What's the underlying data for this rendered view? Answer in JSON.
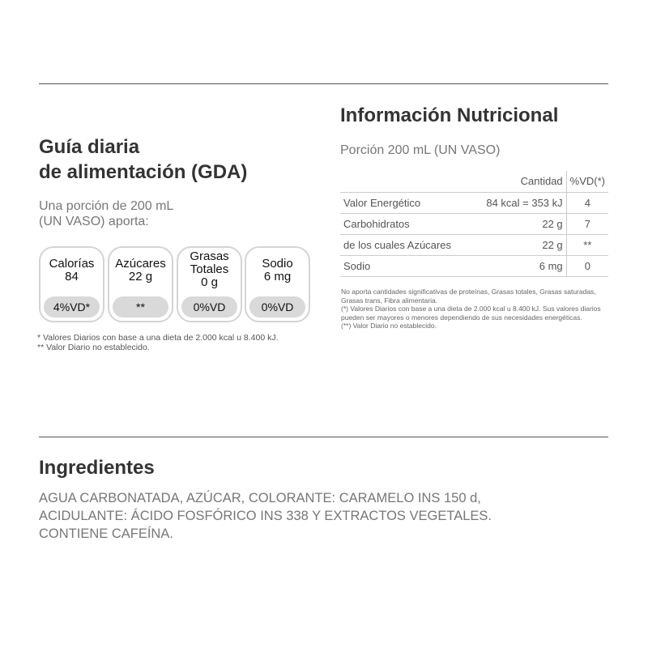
{
  "gda": {
    "title_line1": "Guía diaria",
    "title_line2": "de alimentación (GDA)",
    "subtitle_line1": "Una porción de 200 mL",
    "subtitle_line2": "(UN VASO) aporta:",
    "boxes": [
      {
        "lines": [
          "Calorías",
          "84"
        ],
        "pill": "4%VD*"
      },
      {
        "lines": [
          "Azúcares",
          "22 g"
        ],
        "pill": "**"
      },
      {
        "lines": [
          "Grasas",
          "Totales",
          "0 g"
        ],
        "pill": "0%VD"
      },
      {
        "lines": [
          "Sodio",
          "6 mg"
        ],
        "pill": "0%VD"
      }
    ],
    "footnote1": "* Valores Diarios con base a una dieta de 2.000 kcal u 8.400 kJ.",
    "footnote2": "** Valor Diario no establecido."
  },
  "nutrition": {
    "title": "Información Nutricional",
    "portion": "Porción 200 mL (UN VASO)",
    "headers": [
      "",
      "Cantidad",
      "%VD(*)"
    ],
    "rows": [
      [
        "Valor Energético",
        "84 kcal = 353 kJ",
        "4"
      ],
      [
        "Carbohidratos",
        "22 g",
        "7"
      ],
      [
        "de los cuales Azúcares",
        "22 g",
        "**"
      ],
      [
        "Sodio",
        "6 mg",
        "0"
      ]
    ],
    "notes": [
      "No aporta cantidades significativas de proteínas, Grasas totales, Grasas saturadas, Grasas trans, Fibra alimentaria.",
      "(*) Valores Diarios con base a una dieta de 2.000 kcal u 8.400 kJ. Sus valores diarios pueden ser mayores o menores dependiendo de sus necesidades energéticas.",
      "(**) Valor Diario no establecido."
    ]
  },
  "ingredients": {
    "title": "Ingredientes",
    "lines": [
      "AGUA CARBONATADA, AZÚCAR, COLORANTE: CARAMELO INS 150 d,",
      "ACIDULANTE: ÁCIDO FOSFÓRICO INS 338 Y EXTRACTOS VEGETALES.",
      "CONTIENE CAFEÍNA."
    ]
  }
}
